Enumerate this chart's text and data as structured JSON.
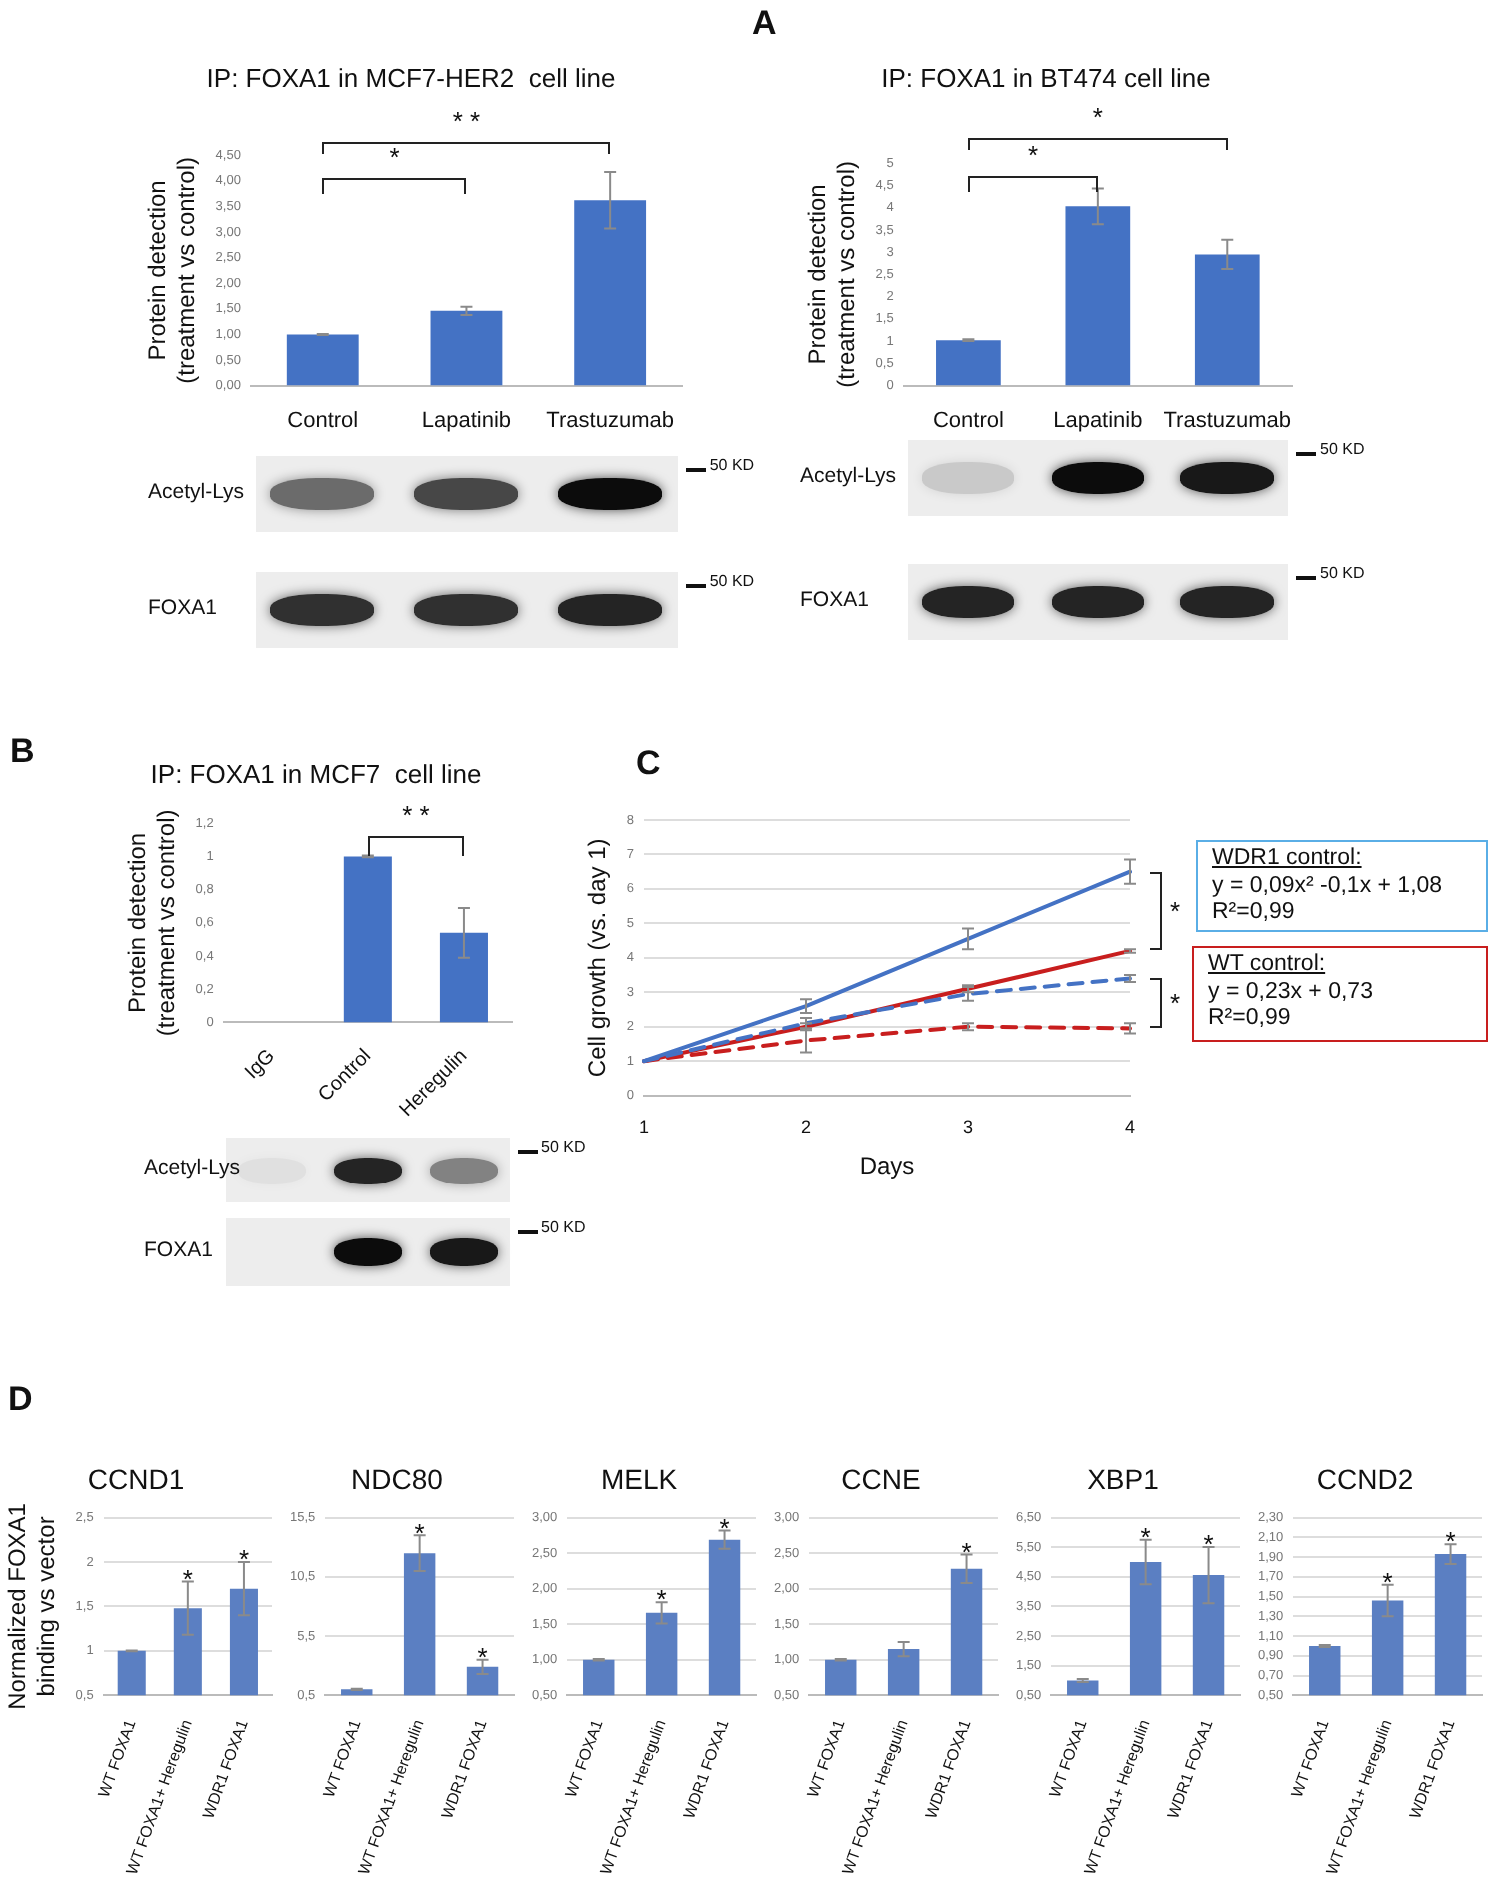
{
  "chart_data": [
    {
      "type": "bar",
      "title": "IP: FOXA1 in MCF7-HER2  cell line",
      "ylabel": "Protein detection\n(treatment vs control)",
      "categories": [
        "Control",
        "Lapatinib",
        "Trastuzumab"
      ],
      "values": [
        1.0,
        1.46,
        3.62
      ],
      "errors": [
        0.01,
        0.08,
        0.55
      ],
      "color": "#4472c4",
      "ylim": [
        0,
        4.5
      ],
      "yticks": [
        {
          "value": 0,
          "label": "0,00"
        },
        {
          "value": 0.5,
          "label": "0,50"
        },
        {
          "value": 1,
          "label": "1,00"
        },
        {
          "value": 1.5,
          "label": "1,50"
        },
        {
          "value": 2,
          "label": "2,00"
        },
        {
          "value": 2.5,
          "label": "2,50"
        },
        {
          "value": 3,
          "label": "3,00"
        },
        {
          "value": 3.5,
          "label": "3,50"
        },
        {
          "value": 4,
          "label": "4,00"
        },
        {
          "value": 4.5,
          "label": "4,50"
        }
      ],
      "annotations": [
        "A",
        "* *",
        "*",
        "Acetyl-Lys",
        "FOXA1",
        "50 KD",
        "50 KD"
      ]
    },
    {
      "type": "bar",
      "title": "IP: FOXA1 in BT474 cell line",
      "ylabel": "Protein detection\n(treatment vs control)",
      "categories": [
        "Control",
        "Lapatinib",
        "Trastuzumab"
      ],
      "values": [
        1.02,
        4.03,
        2.95
      ],
      "errors": [
        0.02,
        0.4,
        0.33
      ],
      "color": "#4472c4",
      "ylim": [
        0,
        5
      ],
      "yticks": [
        0,
        {
          "value": 0.5,
          "label": "0,5"
        },
        1,
        {
          "value": 1.5,
          "label": "1,5"
        },
        2,
        {
          "value": 2.5,
          "label": "2,5"
        },
        3,
        {
          "value": 3.5,
          "label": "3,5"
        },
        4,
        {
          "value": 4.5,
          "label": "4,5"
        },
        5
      ],
      "annotations": [
        "*",
        "*",
        "Acetyl-Lys",
        "FOXA1",
        "50 KD",
        "50 KD"
      ]
    },
    {
      "type": "bar",
      "title": "IP: FOXA1 in MCF7  cell line",
      "ylabel": "Protein detection\n(treatment vs control)",
      "categories": [
        "IgG",
        "Control",
        "Heregulin"
      ],
      "values": [
        null,
        1.0,
        0.54
      ],
      "errors": [
        null,
        0.005,
        0.15
      ],
      "color": "#4472c4",
      "ylim": [
        0,
        1.2
      ],
      "yticks": [
        0,
        {
          "value": 0.2,
          "label": "0,2"
        },
        {
          "value": 0.4,
          "label": "0,4"
        },
        {
          "value": 0.6,
          "label": "0,6"
        },
        {
          "value": 0.8,
          "label": "0,8"
        },
        1,
        {
          "value": 1.2,
          "label": "1,2"
        }
      ],
      "annotations": [
        "B",
        "* *",
        "Acetyl-Lys",
        "FOXA1",
        "50 KD",
        "50 KD"
      ]
    },
    {
      "type": "line",
      "xlabel": "Days",
      "ylabel": "Cell growth (vs. day 1)",
      "categories": [
        "1",
        "2",
        "3",
        "4"
      ],
      "ylim": [
        0,
        8
      ],
      "yticks": [
        0,
        1,
        2,
        3,
        4,
        5,
        6,
        7,
        8
      ],
      "grid": "y",
      "series": [
        {
          "color": "#4472c4",
          "values": [
            1,
            2.6,
            4.55,
            6.5
          ],
          "errors": [
            null,
            0.2,
            0.3,
            0.35
          ]
        },
        {
          "color": "#4472c4",
          "line_style": "dashed",
          "values": [
            1,
            2.1,
            2.95,
            3.4
          ],
          "errors": [
            null,
            0.15,
            0.2,
            0.1
          ]
        },
        {
          "color": "#c81e1e",
          "values": [
            1,
            2.0,
            3.1,
            4.2
          ],
          "errors": [
            null,
            0.1,
            0.1,
            0.05
          ]
        },
        {
          "color": "#c81e1e",
          "line_style": "dashed",
          "values": [
            1,
            1.6,
            2.0,
            1.95
          ],
          "errors": [
            null,
            0.35,
            0.1,
            0.15
          ]
        }
      ],
      "annotations": [
        "C",
        "*",
        "*",
        "WDR1 control:",
        "y = 0,09x² -0,1x + 1,08",
        "R²=0,99",
        "WT control:",
        "y = 0,23x + 0,73",
        "R²=0,99"
      ]
    },
    {
      "type": "bar",
      "title": "CCND1",
      "ylabel": "Normalized FOXA1\nbinding vs vector",
      "categories": [
        "WT FOXA1",
        "WT FOXA1+ Heregulin",
        "WDR1 FOXA1"
      ],
      "values": [
        1,
        1.48,
        1.7
      ],
      "errors": [
        0.005,
        0.3,
        0.3
      ],
      "color": "#5b7fc2",
      "ylim": [
        0.5,
        2.5
      ],
      "grid": "y",
      "yticks": [
        {
          "value": 0.5,
          "label": "0,5"
        },
        1,
        {
          "value": 1.5,
          "label": "1,5"
        },
        2,
        {
          "value": 2.5,
          "label": "2,5"
        }
      ],
      "annotations": [
        "D",
        {
          "text": "*",
          "x": "WT FOXA1+ Heregulin",
          "y": 1.78
        },
        {
          "text": "*",
          "x": "WDR1 FOXA1",
          "y": 2.0
        }
      ]
    },
    {
      "type": "bar",
      "title": "NDC80",
      "categories": [
        "WT FOXA1",
        "WT FOXA1+ Heregulin",
        "WDR1 FOXA1"
      ],
      "values": [
        1.0,
        12.5,
        2.9
      ],
      "errors": [
        0.05,
        1.5,
        0.6
      ],
      "color": "#5b7fc2",
      "ylim": [
        0.5,
        15.5
      ],
      "grid": "y",
      "yticks": [
        {
          "value": 0.5,
          "label": "0,5"
        },
        {
          "value": 5.5,
          "label": "5,5"
        },
        {
          "value": 10.5,
          "label": "10,5"
        },
        {
          "value": 15.5,
          "label": "15,5"
        }
      ],
      "annotations": [
        {
          "text": "*",
          "x": "WT FOXA1+ Heregulin",
          "y": 14.0
        },
        {
          "text": "*",
          "x": "WDR1 FOXA1",
          "y": 3.5
        }
      ]
    },
    {
      "type": "bar",
      "title": "MELK",
      "categories": [
        "WT FOXA1",
        "WT FOXA1+ Heregulin",
        "WDR1 FOXA1"
      ],
      "values": [
        1,
        1.66,
        2.69
      ],
      "errors": [
        0.01,
        0.15,
        0.13
      ],
      "color": "#5b7fc2",
      "ylim": [
        0.5,
        3
      ],
      "grid": "y",
      "yticks": [
        {
          "value": 0.5,
          "label": "0,50"
        },
        {
          "value": 1,
          "label": "1,00"
        },
        {
          "value": 1.5,
          "label": "1,50"
        },
        {
          "value": 2,
          "label": "2,00"
        },
        {
          "value": 2.5,
          "label": "2,50"
        },
        {
          "value": 3,
          "label": "3,00"
        }
      ],
      "annotations": [
        {
          "text": "*",
          "x": "WT FOXA1+ Heregulin",
          "y": 1.81
        },
        {
          "text": "*",
          "x": "WDR1 FOXA1",
          "y": 2.82
        }
      ]
    },
    {
      "type": "bar",
      "title": "CCNE",
      "categories": [
        "WT FOXA1",
        "WT FOXA1+ Heregulin",
        "WDR1 FOXA1"
      ],
      "values": [
        1,
        1.15,
        2.28
      ],
      "errors": [
        0.01,
        0.1,
        0.2
      ],
      "color": "#5b7fc2",
      "ylim": [
        0.5,
        3
      ],
      "grid": "y",
      "yticks": [
        {
          "value": 0.5,
          "label": "0,50"
        },
        {
          "value": 1,
          "label": "1,00"
        },
        {
          "value": 1.5,
          "label": "1,50"
        },
        {
          "value": 2,
          "label": "2,00"
        },
        {
          "value": 2.5,
          "label": "2,50"
        },
        {
          "value": 3,
          "label": "3,00"
        }
      ],
      "annotations": [
        {
          "text": "*",
          "x": "WDR1 FOXA1",
          "y": 2.48
        }
      ]
    },
    {
      "type": "bar",
      "title": "XBP1",
      "categories": [
        "WT FOXA1",
        "WT FOXA1+ Heregulin",
        "WDR1 FOXA1"
      ],
      "values": [
        1.0,
        5.0,
        4.56
      ],
      "errors": [
        0.05,
        0.75,
        0.95
      ],
      "color": "#5b7fc2",
      "ylim": [
        0.5,
        6.5
      ],
      "grid": "y",
      "yticks": [
        {
          "value": 0.5,
          "label": "0,50"
        },
        {
          "value": 1.5,
          "label": "1,50"
        },
        {
          "value": 2.5,
          "label": "2,50"
        },
        {
          "value": 3.5,
          "label": "3,50"
        },
        {
          "value": 4.5,
          "label": "4,50"
        },
        {
          "value": 5.5,
          "label": "5,50"
        },
        {
          "value": 6.5,
          "label": "6,50"
        }
      ],
      "annotations": [
        {
          "text": "*",
          "x": "WT FOXA1+ Heregulin",
          "y": 5.75
        },
        {
          "text": "*",
          "x": "WDR1 FOXA1",
          "y": 5.51
        }
      ]
    },
    {
      "type": "bar",
      "title": "CCND2",
      "categories": [
        "WT FOXA1",
        "WT FOXA1+ Heregulin",
        "WDR1 FOXA1"
      ],
      "values": [
        1.0,
        1.46,
        1.93
      ],
      "errors": [
        0.01,
        0.16,
        0.1
      ],
      "color": "#5b7fc2",
      "ylim": [
        0.5,
        2.3
      ],
      "grid": "y",
      "yticks": [
        {
          "value": 0.5,
          "label": "0,50"
        },
        {
          "value": 0.7,
          "label": "0,70"
        },
        {
          "value": 0.9,
          "label": "0,90"
        },
        {
          "value": 1.1,
          "label": "1,10"
        },
        {
          "value": 1.3,
          "label": "1,30"
        },
        {
          "value": 1.5,
          "label": "1,50"
        },
        {
          "value": 1.7,
          "label": "1,70"
        },
        {
          "value": 1.9,
          "label": "1,90"
        },
        {
          "value": 2.1,
          "label": "2,10"
        },
        {
          "value": 2.3,
          "label": "2,30"
        }
      ],
      "annotations": [
        {
          "text": "*",
          "x": "WT FOXA1+ Heregulin",
          "y": 1.62
        },
        {
          "text": "*",
          "x": "WDR1 FOXA1",
          "y": 2.03
        }
      ]
    }
  ]
}
